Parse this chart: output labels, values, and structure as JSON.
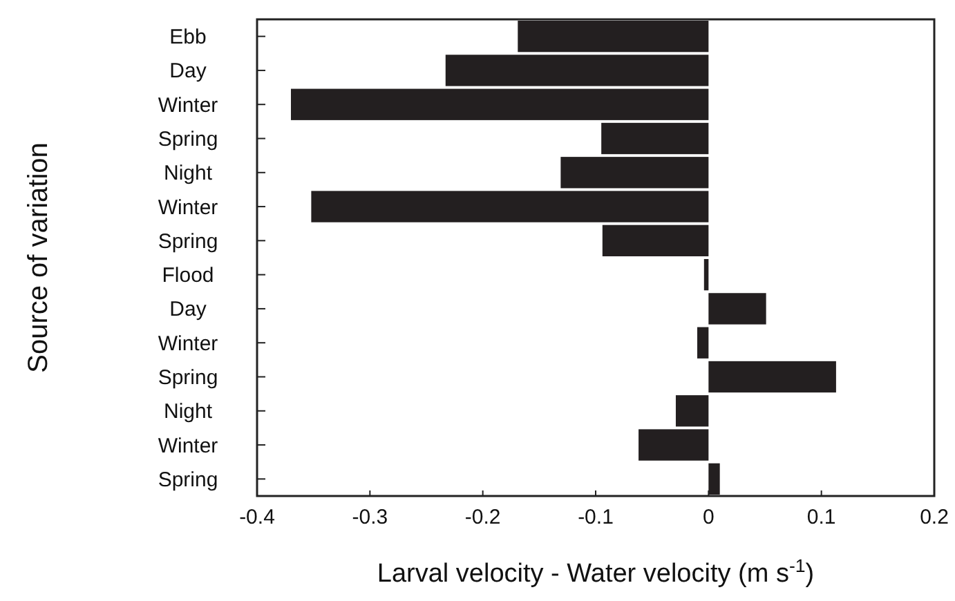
{
  "chart_data": {
    "type": "bar",
    "orientation": "horizontal",
    "xlabel": "Larval velocity - Water velocity (m s$^{-1}$)",
    "ylabel": "Source of variation",
    "categories": [
      "Ebb",
      "Day",
      "Winter",
      "Spring",
      "Night",
      "Winter",
      "Spring",
      "Flood",
      "Day",
      "Winter",
      "Spring",
      "Night",
      "Winter",
      "Spring"
    ],
    "values": [
      -0.169,
      -0.233,
      -0.37,
      -0.095,
      -0.131,
      -0.352,
      -0.094,
      -0.004,
      0.051,
      -0.01,
      0.113,
      -0.029,
      -0.062,
      0.01
    ],
    "color": "#231f20",
    "xlim": [
      -0.4,
      0.2
    ],
    "xticks": [
      -0.4,
      -0.3,
      -0.2,
      -0.1,
      0,
      0.1,
      0.2
    ],
    "grid": false
  }
}
